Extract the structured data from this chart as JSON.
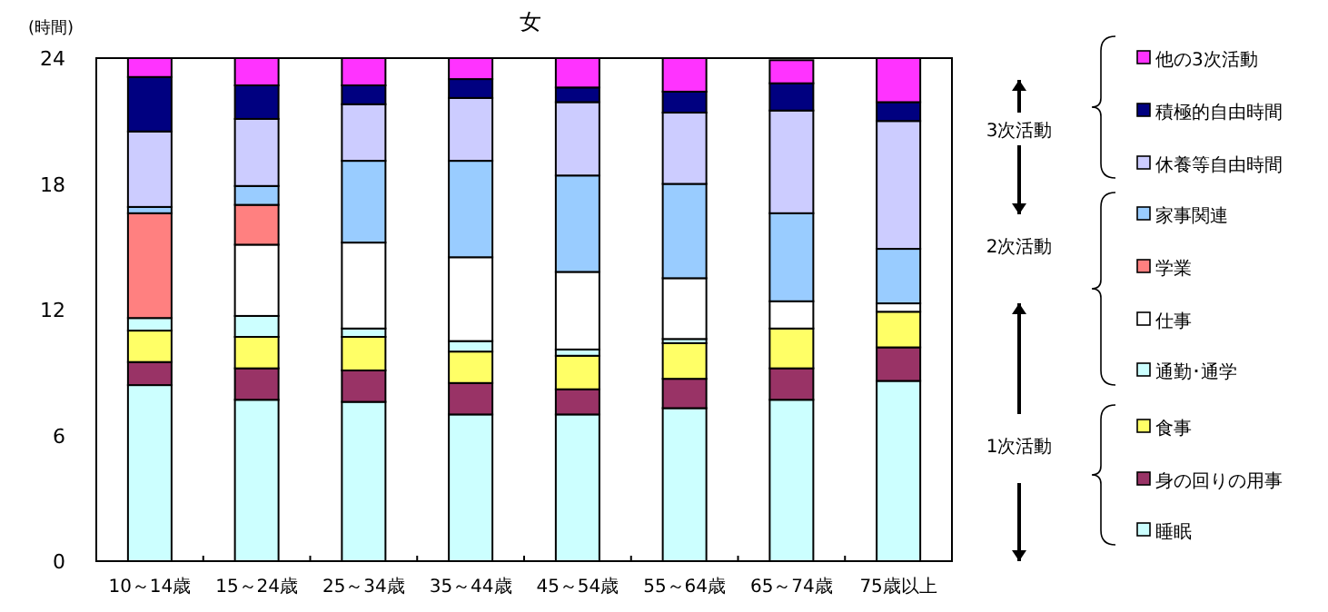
{
  "chart_data": {
    "type": "bar",
    "stacked": true,
    "title": "女",
    "ylabel": "(時間)",
    "categories": [
      "10～14歳",
      "15～24歳",
      "25～34歳",
      "35～44歳",
      "45～54歳",
      "55～64歳",
      "65～74歳",
      "75歳以上"
    ],
    "ylim": [
      0,
      24
    ],
    "yticks": [
      0,
      6,
      12,
      18,
      24
    ],
    "grid": false,
    "legend": "right",
    "annotations": [
      "3次活動",
      "2次活動",
      "1次活動"
    ],
    "series": [
      {
        "name": "睡眠",
        "color": "#ccffff",
        "values": [
          8.4,
          7.7,
          7.6,
          7.0,
          7.0,
          7.3,
          7.7,
          8.6
        ]
      },
      {
        "name": "身の回りの用事",
        "color": "#993366",
        "values": [
          1.1,
          1.5,
          1.5,
          1.5,
          1.2,
          1.4,
          1.5,
          1.6
        ]
      },
      {
        "name": "食事",
        "color": "#ffff66",
        "values": [
          1.5,
          1.5,
          1.6,
          1.5,
          1.6,
          1.7,
          1.9,
          1.7
        ]
      },
      {
        "name": "通勤･通学",
        "color": "#ccffff",
        "values": [
          0.6,
          1.0,
          0.4,
          0.5,
          0.3,
          0.2,
          null,
          0.0
        ]
      },
      {
        "name": "仕事",
        "color": "#ffffff",
        "values": [
          0.0,
          3.4,
          4.1,
          4.0,
          3.7,
          2.9,
          1.3,
          0.4
        ]
      },
      {
        "name": "学業",
        "color": "#ff8080",
        "values": [
          5.0,
          1.9,
          0.0,
          0.0,
          0.0,
          0.0,
          0.0,
          0.0
        ]
      },
      {
        "name": "家事関連",
        "color": "#99ccff",
        "values": [
          0.3,
          0.9,
          3.9,
          4.6,
          4.6,
          4.5,
          4.2,
          2.6
        ]
      },
      {
        "name": "休養等自由時間",
        "color": "#ccccff",
        "values": [
          3.6,
          3.2,
          2.7,
          3.0,
          3.5,
          3.4,
          4.9,
          6.1
        ]
      },
      {
        "name": "積極的自由時間",
        "color": "#000080",
        "values": [
          2.6,
          1.6,
          0.9,
          0.9,
          0.7,
          1.0,
          1.3,
          0.9
        ]
      },
      {
        "name": "他の3次活動",
        "color": "#ff33ff",
        "values": [
          0.9,
          1.3,
          1.3,
          1.0,
          1.4,
          1.6,
          1.1,
          2.1
        ]
      }
    ]
  }
}
